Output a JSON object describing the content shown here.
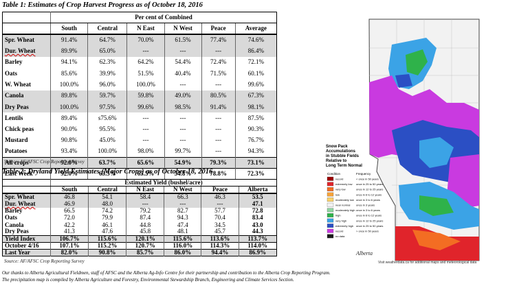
{
  "table1": {
    "title": "Table 1: Estimates of Crop Harvest Progress as of October 18, 2016",
    "group_header": "Per cent of Combined",
    "columns": [
      "South",
      "Central",
      "N East",
      "N West",
      "Peace",
      "Average"
    ],
    "rows": [
      {
        "label": "Spr. Wheat",
        "values": [
          "91.4%",
          "64.7%",
          "70.0%",
          "61.5%",
          "77.4%",
          "74.6%"
        ],
        "shade": true
      },
      {
        "label": "Dur. Wheat",
        "values": [
          "89.9%",
          "65.0%",
          "---",
          "---",
          "---",
          "86.4%"
        ],
        "shade": true
      },
      {
        "label": "Barley",
        "values": [
          "94.1%",
          "62.3%",
          "64.2%",
          "54.4%",
          "72.4%",
          "72.1%"
        ],
        "shade": false
      },
      {
        "label": "Oats",
        "values": [
          "85.6%",
          "39.9%",
          "51.5%",
          "40.4%",
          "71.5%",
          "60.1%"
        ],
        "shade": false
      },
      {
        "label": "W. Wheat",
        "values": [
          "100.0%",
          "96.0%",
          "100.0%",
          "---",
          "---",
          "99.6%"
        ],
        "shade": false
      },
      {
        "label": "Canola",
        "values": [
          "89.8%",
          "59.7%",
          "59.8%",
          "49.0%",
          "80.5%",
          "67.3%"
        ],
        "shade": true
      },
      {
        "label": "Dry Peas",
        "values": [
          "100.0%",
          "97.5%",
          "99.6%",
          "98.5%",
          "91.4%",
          "98.1%"
        ],
        "shade": true
      },
      {
        "label": "Lentils",
        "values": [
          "89.4%",
          "s75.6%",
          "---",
          "---",
          "---",
          "87.5%"
        ],
        "shade": false
      },
      {
        "label": "Chick peas",
        "values": [
          "90.0%",
          "95.5%",
          "---",
          "---",
          "---",
          "90.3%"
        ],
        "shade": false
      },
      {
        "label": "Mustard",
        "values": [
          "90.8%",
          "45.0%",
          "---",
          "---",
          "---",
          "76.7%"
        ],
        "shade": false
      },
      {
        "label": "Potatoes",
        "values": [
          "93.4%",
          "100.0%",
          "98.0%",
          "99.7%",
          "---",
          "94.3%"
        ],
        "shade": false
      }
    ],
    "summary": [
      {
        "label": "All crops",
        "values": [
          "92.0%",
          "63.7%",
          "65.6%",
          "54.9%",
          "79.3%",
          "73.1%"
        ]
      },
      {
        "label": "Last Week",
        "values": [
          "92.0%",
          "63.5%",
          "65.5%",
          "54.8%",
          "78.8%",
          "72.3%"
        ]
      }
    ],
    "source": "Source: AF/AFSC Crop Reporting Survey"
  },
  "table2": {
    "title": "Table 2: Dryland Yield Estimates (Major Crops) as of October 18, 2016",
    "group_header": "Estimated Yield (bushel/acre)",
    "columns": [
      "South",
      "Central",
      "N East",
      "N West",
      "Peace",
      "Alberta"
    ],
    "rows": [
      {
        "label": "Spr. Wheat",
        "values": [
          "46.8",
          "54.1",
          "58.4",
          "66.3",
          "46.3",
          "53.5"
        ],
        "shade": true
      },
      {
        "label": "Dur. Wheat",
        "values": [
          "46.9",
          "48.0",
          "---",
          "---",
          "---",
          "47.1"
        ],
        "shade": true
      },
      {
        "label": "Barley",
        "values": [
          "66.5",
          "74.2",
          "79.2",
          "82.7",
          "57.7",
          "72.8"
        ],
        "shade": false
      },
      {
        "label": "Oats",
        "values": [
          "72.0",
          "79.9",
          "87.4",
          "94.3",
          "70.4",
          "83.4"
        ],
        "shade": false
      },
      {
        "label": "Canola",
        "values": [
          "42.2",
          "46.1",
          "44.8",
          "47.4",
          "34.5",
          "43.0"
        ],
        "shade": false
      },
      {
        "label": "Dry Peas",
        "values": [
          "41.3",
          "47.6",
          "45.8",
          "48.1",
          "45.7",
          "44.3"
        ],
        "shade": false
      }
    ],
    "summary": [
      {
        "label": "Yield Index",
        "values": [
          "106.7%",
          "115.6%",
          "120.1%",
          "115.6%",
          "113.6%",
          "113.7%"
        ]
      },
      {
        "label": "October 4/16",
        "values": [
          "107.1%",
          "115.2%",
          "120.7%",
          "116.0%",
          "114.3%",
          "114.0%"
        ]
      },
      {
        "label": "Last Year",
        "values": [
          "82.0%",
          "90.8%",
          "85.7%",
          "86.0%",
          "94.4%",
          "86.9%"
        ]
      }
    ],
    "source": "Source: AF/AFSC Crop Reporting Survey"
  },
  "footer": {
    "line1": "Our thanks to Alberta Agricultural Fieldmen, staff of AFSC and the Alberta Ag-Info Centre for their partnership and contribution to the Alberta Crop Reporting Program.",
    "line2": "The precipitation map is compiled by Alberta Agriculture and Forestry, Environmental Stewardship Branch, Engineering and Climate Services Section."
  },
  "map": {
    "title_line1": "Snow Pack",
    "title_line2": "Accumulations",
    "title_line3": "in Stubble Fields",
    "title_line4": "Relative to",
    "title_line5": "Long Term Normal",
    "legend_header_condition": "Condition",
    "legend_header_frequency": "Frequency",
    "legend": [
      {
        "condition": "record",
        "freq": "< once in 50 years",
        "color": "#9b0000"
      },
      {
        "condition": "extremely low",
        "freq": "once in 25 to 50 years",
        "color": "#e0242b"
      },
      {
        "condition": "very low",
        "freq": "once in 12 to 25 years",
        "color": "#f36d23"
      },
      {
        "condition": "low",
        "freq": "once in 6 to 12 years",
        "color": "#f6a33a"
      },
      {
        "condition": "moderately low",
        "freq": "once in 3 to 6 years",
        "color": "#fbd26a"
      },
      {
        "condition": "near normal",
        "freq": "once in 3 years",
        "color": "#f2f2f2"
      },
      {
        "condition": "moderately high",
        "freq": "once in 3 to 6 years",
        "color": "#8fd3a0"
      },
      {
        "condition": "high",
        "freq": "once in 6 to 12 years",
        "color": "#2fb24a"
      },
      {
        "condition": "very high",
        "freq": "once in 12 to 25 years",
        "color": "#3ba3e6"
      },
      {
        "condition": "extremely high",
        "freq": "once in 25 to 50 years",
        "color": "#2b4fc4"
      },
      {
        "condition": "record",
        "freq": "> once in 50 years",
        "color": "#c93ae0"
      },
      {
        "condition": "no data",
        "freq": "",
        "color": "#1a1a1a"
      }
    ],
    "visit": "Visit weatherdata.ca for additional maps and meteorological data",
    "brand": "Alberta"
  },
  "colors": {
    "grey_row": "#d9d9d9",
    "map_purple": "#c93ae0",
    "map_blue": "#2b4fc4",
    "map_lightblue": "#3ba3e6",
    "map_green": "#2fb24a",
    "map_red": "#e0242b"
  }
}
